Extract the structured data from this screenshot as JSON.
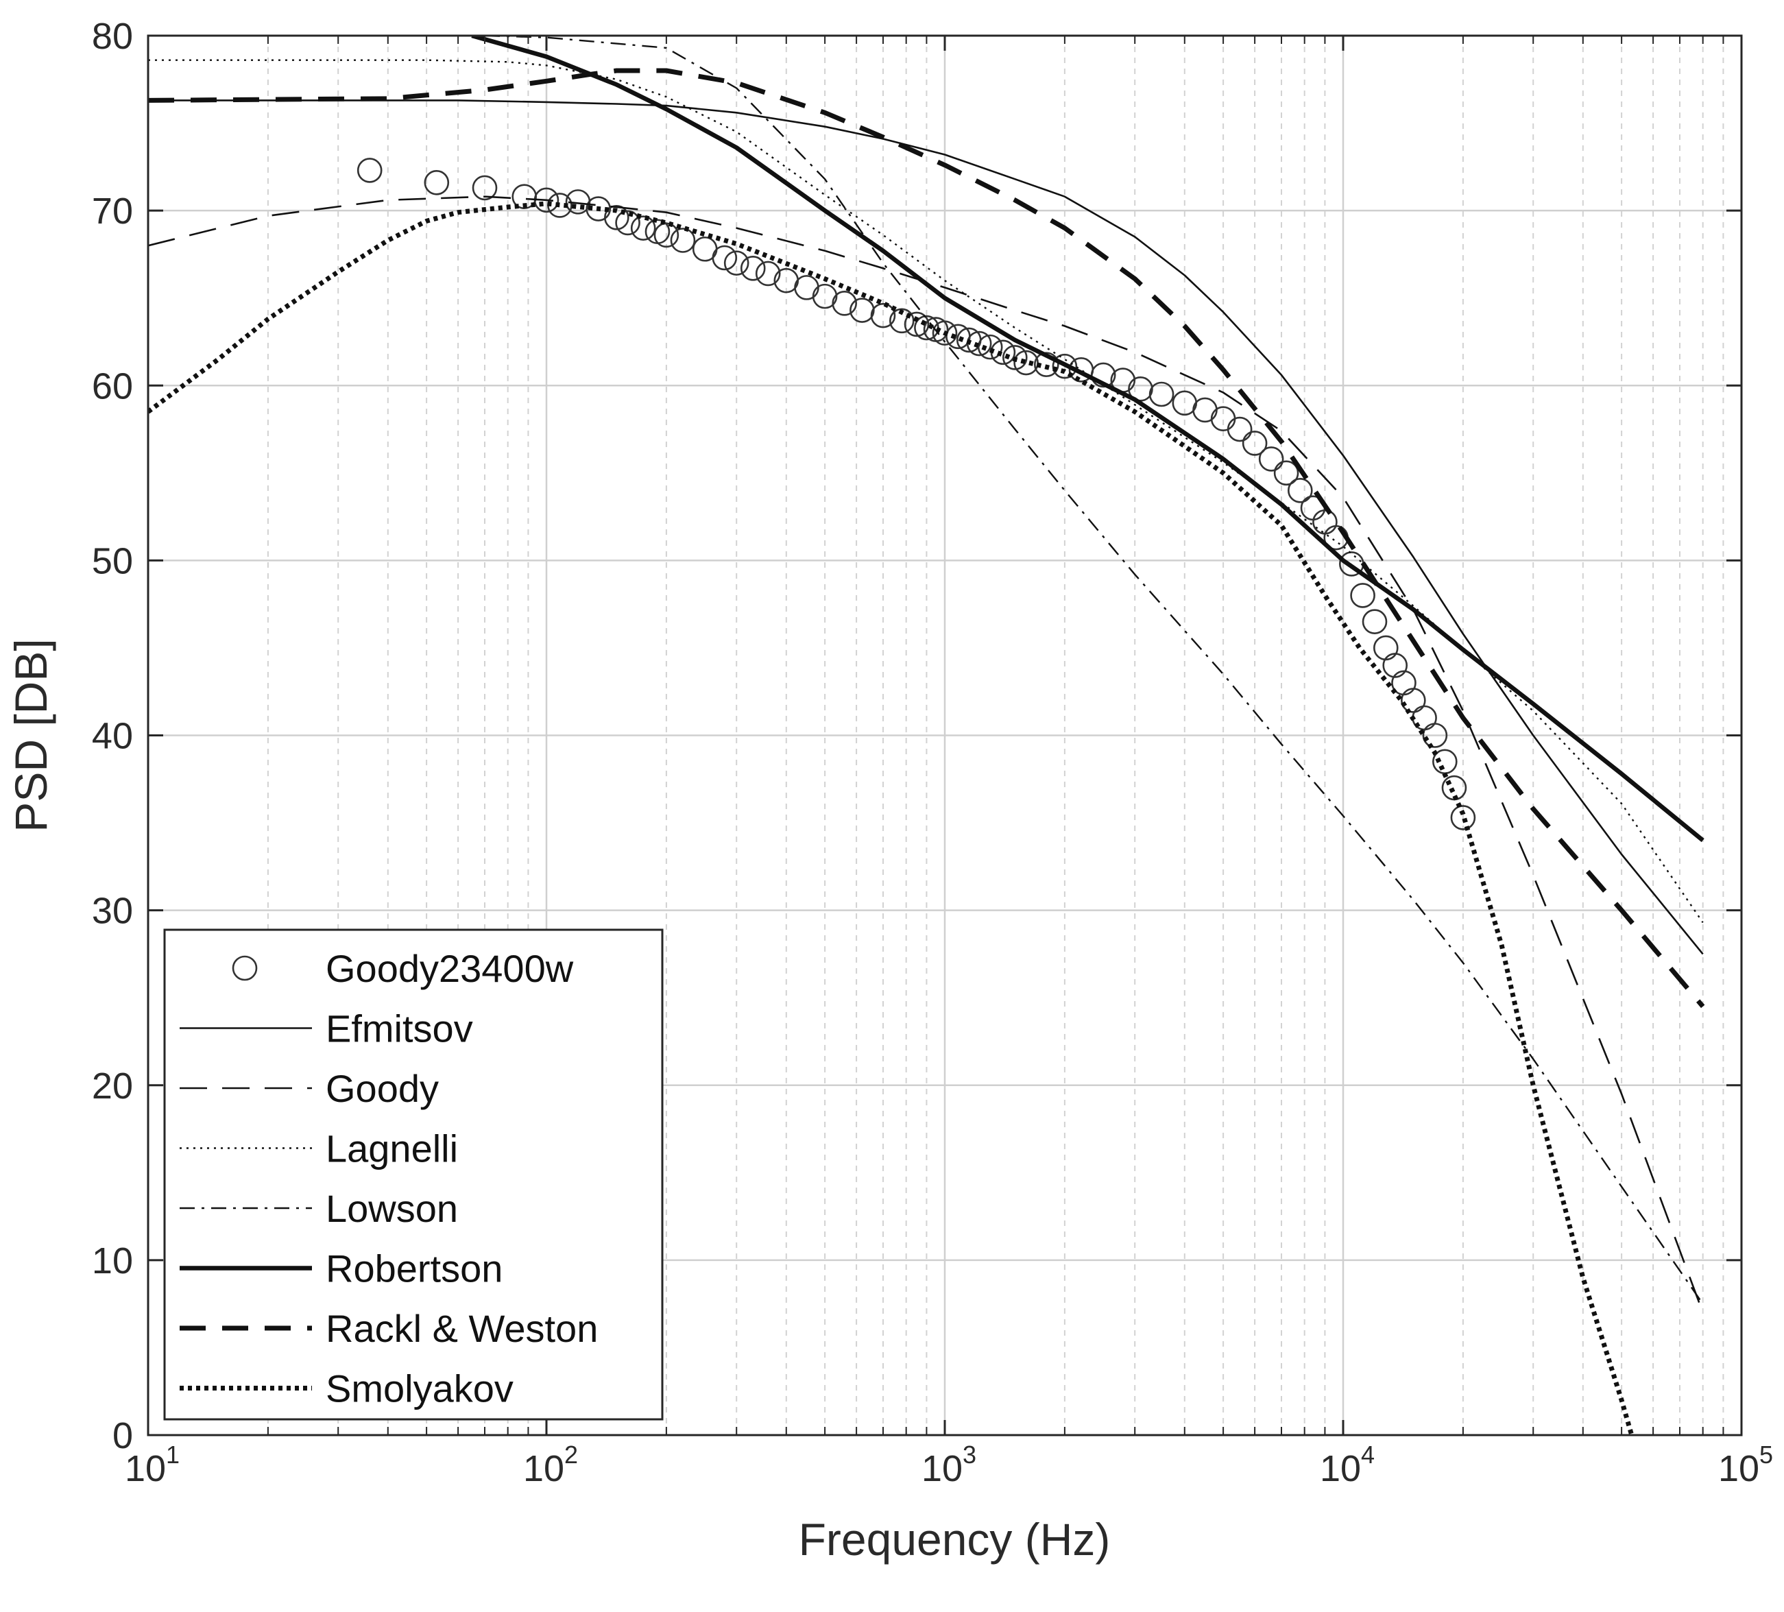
{
  "chart_data": {
    "type": "line",
    "title": "",
    "xlabel": "Frequency (Hz)",
    "ylabel": "PSD [DB]",
    "xscale": "log",
    "xlim": [
      10,
      100000
    ],
    "ylim": [
      0,
      80
    ],
    "grid": true,
    "legend_position": "bottom-left",
    "x_ticks": [
      {
        "base": "10",
        "exp": "1"
      },
      {
        "base": "10",
        "exp": "2"
      },
      {
        "base": "10",
        "exp": "3"
      },
      {
        "base": "10",
        "exp": "4"
      },
      {
        "base": "10",
        "exp": "5"
      }
    ],
    "y_ticks": [
      "0",
      "10",
      "20",
      "30",
      "40",
      "50",
      "60",
      "70",
      "80"
    ],
    "series": [
      {
        "name": "Goody23400w",
        "style": "marker",
        "x": [
          36,
          53,
          70,
          88,
          100,
          108,
          120,
          135,
          150,
          160,
          175,
          190,
          200,
          220,
          250,
          280,
          300,
          330,
          360,
          400,
          450,
          500,
          560,
          620,
          700,
          780,
          850,
          900,
          950,
          1000,
          1080,
          1150,
          1220,
          1300,
          1400,
          1500,
          1600,
          1800,
          2000,
          2200,
          2500,
          2800,
          3100,
          3500,
          4000,
          4500,
          5000,
          5500,
          6000,
          6600,
          7200,
          7800,
          8400,
          9000,
          9600,
          10500,
          11200,
          12000,
          12800,
          13500,
          14200,
          15000,
          16000,
          17000,
          18000,
          19000,
          20000
        ],
        "y": [
          72.3,
          71.6,
          71.3,
          70.8,
          70.6,
          70.3,
          70.5,
          70.1,
          69.6,
          69.3,
          69.0,
          68.8,
          68.6,
          68.3,
          67.8,
          67.3,
          67.0,
          66.7,
          66.4,
          66.0,
          65.6,
          65.1,
          64.7,
          64.3,
          64.0,
          63.7,
          63.5,
          63.3,
          63.2,
          63.0,
          62.8,
          62.6,
          62.4,
          62.2,
          61.9,
          61.6,
          61.3,
          61.2,
          61.1,
          60.9,
          60.6,
          60.3,
          59.8,
          59.5,
          59.0,
          58.6,
          58.1,
          57.5,
          56.7,
          55.8,
          55.0,
          54.0,
          53.0,
          52.2,
          51.3,
          49.8,
          48.0,
          46.5,
          45.0,
          44.0,
          43.0,
          42.0,
          41.0,
          40.0,
          38.5,
          37.0,
          35.3
        ]
      },
      {
        "name": "Efmitsov",
        "style": "thin-solid",
        "x": [
          10,
          30,
          60,
          100,
          150,
          200,
          300,
          500,
          700,
          1000,
          1500,
          2000,
          3000,
          4000,
          5000,
          7000,
          10000,
          15000,
          20000,
          30000,
          50000,
          80000
        ],
        "y": [
          76.3,
          76.3,
          76.3,
          76.2,
          76.1,
          76.0,
          75.6,
          74.8,
          74.1,
          73.2,
          71.8,
          70.8,
          68.5,
          66.3,
          64.2,
          60.6,
          56.0,
          50.2,
          45.8,
          40.0,
          33.2,
          27.5
        ]
      },
      {
        "name": "Goody",
        "style": "long-dash",
        "x": [
          10,
          20,
          40,
          70,
          100,
          150,
          200,
          300,
          500,
          700,
          1000,
          1500,
          2000,
          3000,
          5000,
          7000,
          10000,
          15000,
          20000,
          30000,
          50000,
          80000
        ],
        "y": [
          68.0,
          69.7,
          70.6,
          70.8,
          70.6,
          70.2,
          69.9,
          69.0,
          67.7,
          66.7,
          65.6,
          64.3,
          63.4,
          61.9,
          59.6,
          57.4,
          53.6,
          47.2,
          41.4,
          32.0,
          19.5,
          7.0
        ]
      },
      {
        "name": "Lagnelli",
        "style": "dotted",
        "x": [
          10,
          30,
          50,
          80,
          100,
          150,
          200,
          300,
          500,
          700,
          1000,
          1500,
          2000,
          3000,
          5000,
          7000,
          10000,
          15000,
          20000,
          30000,
          50000,
          80000
        ],
        "y": [
          78.6,
          78.6,
          78.6,
          78.5,
          78.3,
          77.5,
          76.5,
          74.5,
          70.9,
          68.6,
          66.0,
          63.3,
          61.5,
          58.9,
          55.6,
          53.3,
          50.8,
          47.4,
          44.9,
          41.4,
          36.1,
          29.3
        ]
      },
      {
        "name": "Lowson",
        "style": "dash-dot",
        "x": [
          70,
          100,
          200,
          300,
          500,
          700,
          1000,
          1500,
          2000,
          3000,
          5000,
          7000,
          10000,
          15000,
          20000,
          30000,
          50000,
          80000
        ],
        "y": [
          80.0,
          79.9,
          79.3,
          77.0,
          71.8,
          67.0,
          62.5,
          57.5,
          54.0,
          49.2,
          43.5,
          39.5,
          35.4,
          30.6,
          27.0,
          21.5,
          14.2,
          7.5
        ]
      },
      {
        "name": "Robertson",
        "style": "thick-solid",
        "x": [
          65,
          100,
          150,
          200,
          300,
          500,
          700,
          1000,
          1500,
          2000,
          3000,
          5000,
          7000,
          10000,
          15000,
          20000,
          30000,
          50000,
          80000
        ],
        "y": [
          80.0,
          78.8,
          77.2,
          75.8,
          73.6,
          70.0,
          67.7,
          65.0,
          62.6,
          61.2,
          59.2,
          55.8,
          53.2,
          50.0,
          47.2,
          44.9,
          41.8,
          37.8,
          34.0
        ]
      },
      {
        "name": "Rackl & Weston",
        "style": "thick-dash",
        "x": [
          10,
          40,
          70,
          100,
          130,
          150,
          200,
          300,
          500,
          700,
          1000,
          1500,
          2000,
          3000,
          4000,
          5000,
          7000,
          10000,
          15000,
          20000,
          30000,
          50000,
          80000
        ],
        "y": [
          76.3,
          76.4,
          76.9,
          77.4,
          77.8,
          78.0,
          78.0,
          77.3,
          75.6,
          74.2,
          72.6,
          70.6,
          69.0,
          66.1,
          63.4,
          60.9,
          56.8,
          51.6,
          45.4,
          41.0,
          35.8,
          30.0,
          24.5
        ]
      },
      {
        "name": "Smolyakov",
        "style": "thick-dotted",
        "x": [
          10,
          15,
          20,
          30,
          40,
          50,
          60,
          80,
          100,
          150,
          200,
          300,
          500,
          700,
          1000,
          1500,
          2000,
          3000,
          5000,
          7000,
          9000,
          11000,
          14000,
          17000,
          20000,
          25000,
          30000,
          40000,
          50000,
          53000
        ],
        "y": [
          58.5,
          61.5,
          63.8,
          66.5,
          68.3,
          69.4,
          69.9,
          70.2,
          70.4,
          70.0,
          69.3,
          68.1,
          66.1,
          64.7,
          63.0,
          61.5,
          60.8,
          58.5,
          55.0,
          52.0,
          48.0,
          45.0,
          42.0,
          39.0,
          35.5,
          28.0,
          20.0,
          9.0,
          2.0,
          0.0
        ]
      }
    ]
  }
}
